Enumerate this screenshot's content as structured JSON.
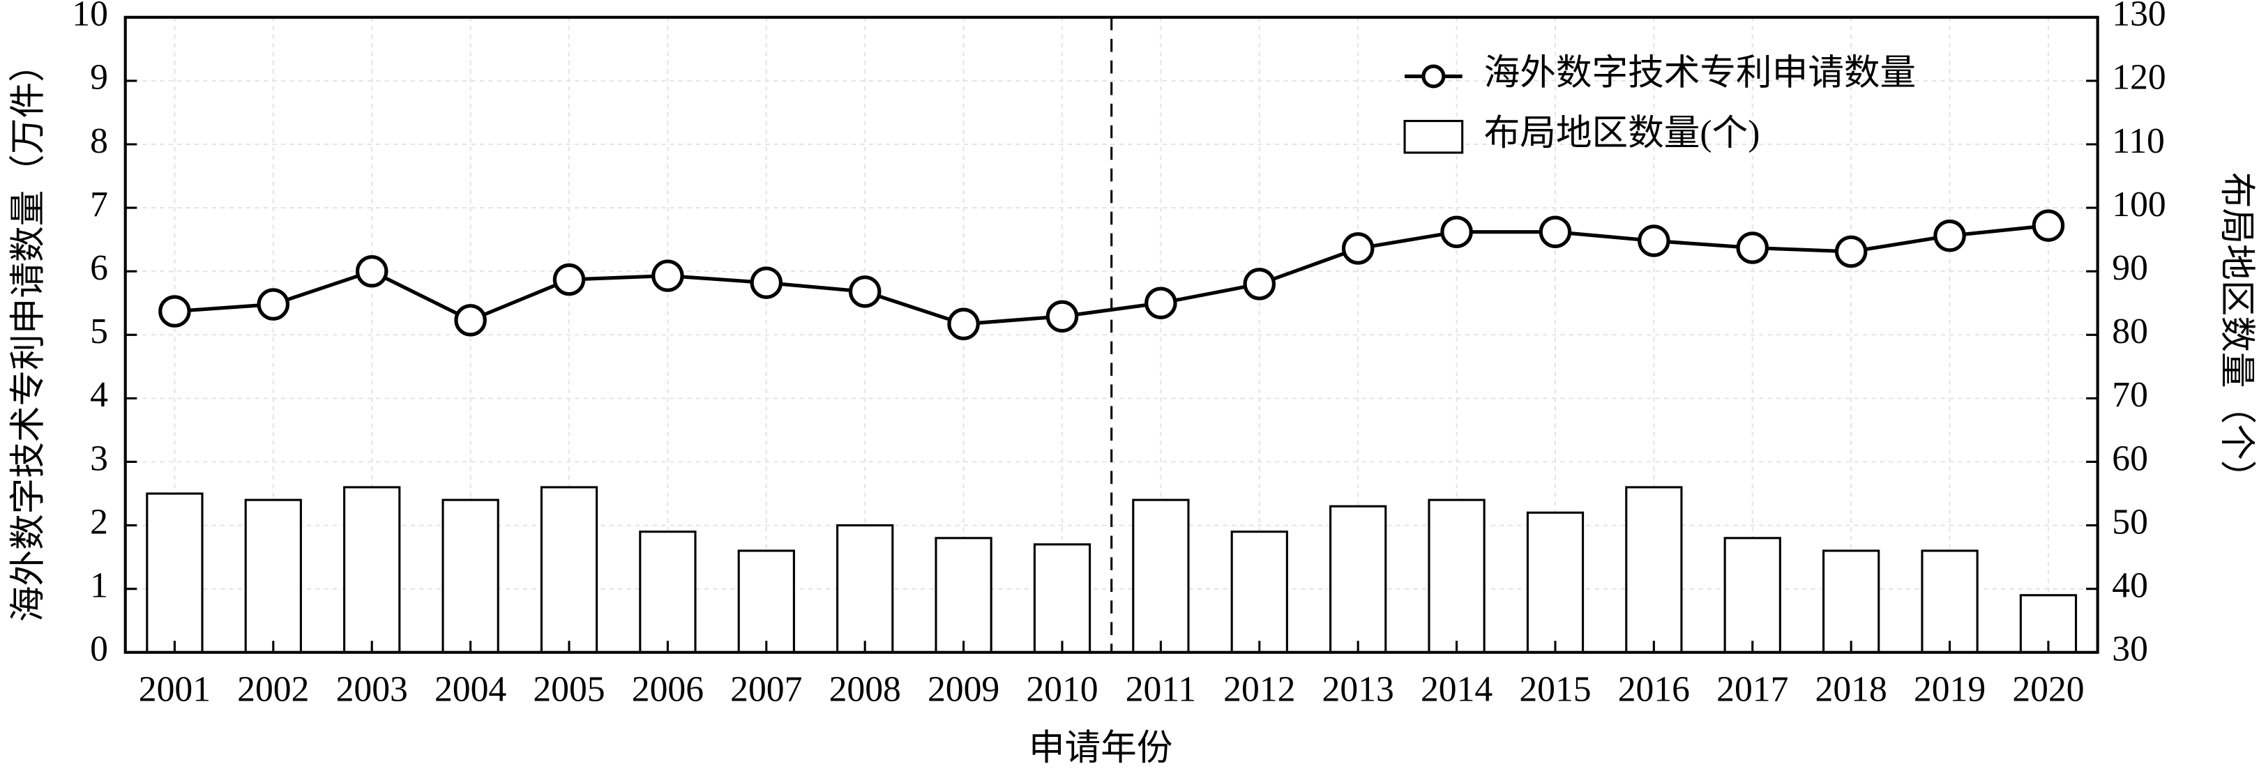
{
  "chart_data": {
    "type": "combo",
    "xlabel": "申请年份",
    "ylabel": "海外数字技术专利申请数量（万件）",
    "y2label": "布局地区数量（个）",
    "categories": [
      "2001",
      "2002",
      "2003",
      "2004",
      "2005",
      "2006",
      "2007",
      "2008",
      "2009",
      "2010",
      "2011",
      "2012",
      "2013",
      "2014",
      "2015",
      "2016",
      "2017",
      "2018",
      "2019",
      "2020"
    ],
    "series": [
      {
        "name": "海外数字技术专利申请数量",
        "type": "line",
        "color": "#000000",
        "values": [
          5.37,
          5.48,
          6.0,
          5.23,
          5.87,
          5.93,
          5.82,
          5.68,
          5.17,
          5.29,
          5.5,
          5.8,
          6.36,
          6.62,
          6.62,
          6.48,
          6.37,
          6.31,
          6.56,
          6.72
        ]
      },
      {
        "name": "布局地区数量(个)",
        "type": "bar",
        "axis": "y2",
        "color": "#ffffff",
        "values": [
          55,
          54,
          56,
          54,
          56,
          49,
          46,
          50,
          48,
          47,
          54,
          49,
          53,
          54,
          52,
          56,
          48,
          46,
          46,
          39
        ]
      }
    ],
    "ylim": [
      0,
      10
    ],
    "yticks": [
      0,
      1,
      2,
      3,
      4,
      5,
      6,
      7,
      8,
      9,
      10
    ],
    "y2lim": [
      30,
      130
    ],
    "y2ticks": [
      30,
      40,
      50,
      60,
      70,
      80,
      90,
      100,
      110,
      120,
      130
    ],
    "grid": true,
    "legend": "upper right"
  }
}
